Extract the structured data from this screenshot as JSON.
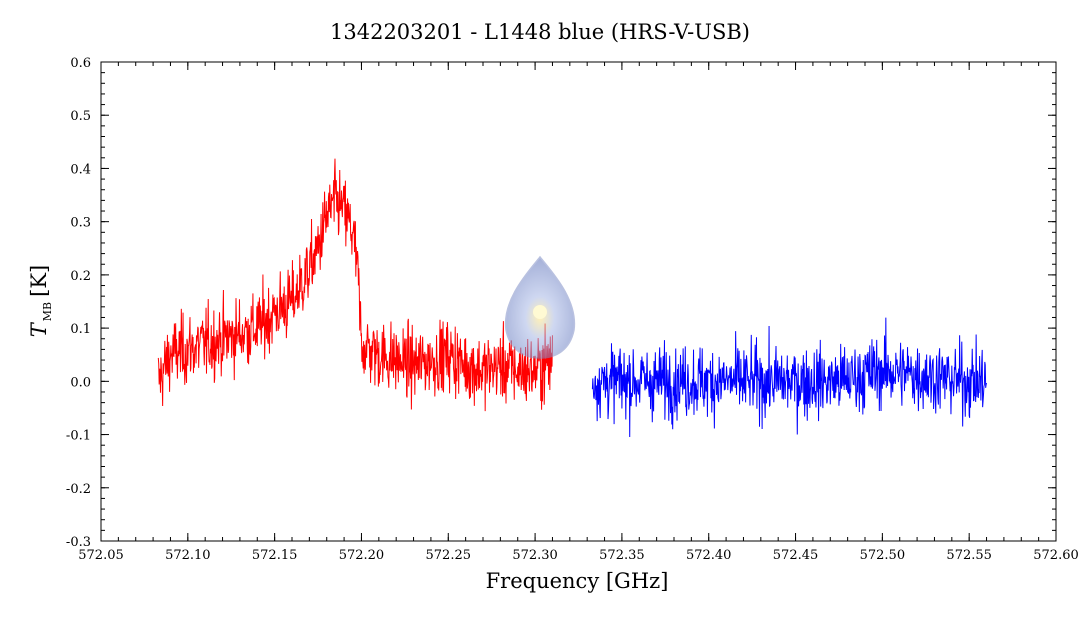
{
  "chart_data": {
    "type": "line",
    "title": "1342203201 - L1448 blue (HRS-V-USB)",
    "xlabel": "Frequency [GHz]",
    "ylabel": {
      "symbol": "T",
      "subscript": "MB",
      "unit": "[K]"
    },
    "xlim": [
      572.05,
      572.6
    ],
    "ylim": [
      -0.3,
      0.6
    ],
    "xticks": [
      "572.05",
      "572.10",
      "572.15",
      "572.20",
      "572.25",
      "572.30",
      "572.35",
      "572.40",
      "572.45",
      "572.50",
      "572.55",
      "572.60"
    ],
    "yticks": [
      "-0.3",
      "-0.2",
      "-0.1",
      "0.0",
      "0.1",
      "0.2",
      "0.3",
      "0.4",
      "0.5",
      "0.6"
    ],
    "grid": false,
    "logo": "watermark-drop-icon",
    "series": [
      {
        "color": "#ff0000",
        "x": [
          572.083,
          572.09,
          572.1,
          572.11,
          572.12,
          572.13,
          572.14,
          572.15,
          572.16,
          572.165,
          572.17,
          572.175,
          572.18,
          572.185,
          572.19,
          572.195,
          572.198,
          572.2,
          572.21,
          572.22,
          572.23,
          572.24,
          572.25,
          572.26,
          572.27,
          572.28,
          572.29,
          572.3,
          572.31
        ],
        "y": [
          0.0,
          0.05,
          0.06,
          0.07,
          0.08,
          0.09,
          0.1,
          0.13,
          0.15,
          0.18,
          0.21,
          0.25,
          0.31,
          0.34,
          0.32,
          0.28,
          0.2,
          0.07,
          0.05,
          0.04,
          0.03,
          0.04,
          0.05,
          0.03,
          0.02,
          0.03,
          0.02,
          0.02,
          0.04
        ],
        "noise": 0.06
      },
      {
        "color": "#0000ff",
        "x": [
          572.333,
          572.35,
          572.375,
          572.4,
          572.425,
          572.45,
          572.475,
          572.5,
          572.525,
          572.55,
          572.56
        ],
        "y": [
          0.0,
          0.0,
          0.0,
          0.0,
          0.0,
          0.0,
          0.0,
          0.02,
          0.01,
          0.0,
          0.0
        ],
        "noise": 0.06
      }
    ]
  }
}
